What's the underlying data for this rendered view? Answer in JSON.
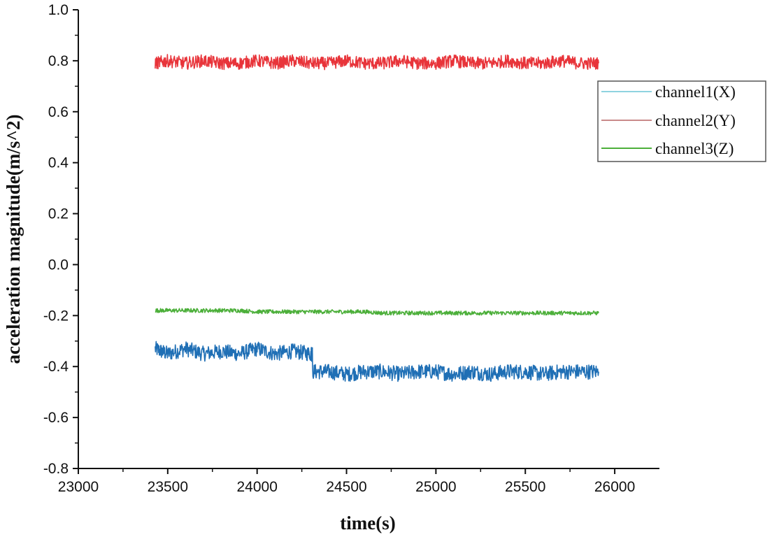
{
  "chart_data": {
    "type": "line",
    "title": "",
    "xlabel": "time(s)",
    "ylabel": "acceleration magnitude(m/s^2)",
    "xlim": [
      23000,
      26250
    ],
    "ylim": [
      -0.8,
      1.0
    ],
    "xticks": [
      23000,
      23500,
      24000,
      24500,
      25000,
      25500,
      26000
    ],
    "xtick_labels": [
      "23000",
      "23500",
      "24000",
      "24500",
      "25000",
      "25500",
      "26000"
    ],
    "yticks": [
      -0.8,
      -0.6,
      -0.4,
      -0.2,
      0.0,
      0.2,
      0.4,
      0.6,
      0.8,
      1.0
    ],
    "ytick_labels": [
      "-0.8",
      "-0.6",
      "-0.4",
      "-0.2",
      "0.0",
      "0.2",
      "0.4",
      "0.6",
      "0.8",
      "1.0"
    ],
    "grid": false,
    "legend_position": "right",
    "series": [
      {
        "name": "channel1(X)",
        "legend_color": "#8fd3e0",
        "color": "#1f6fb5",
        "x": [
          23430,
          23500,
          23600,
          23700,
          23800,
          23900,
          24000,
          24100,
          24200,
          24300,
          24310,
          24400,
          24500,
          24600,
          24700,
          24800,
          24900,
          25000,
          25100,
          25200,
          25300,
          25400,
          25500,
          25600,
          25700,
          25800,
          25910
        ],
        "y": [
          -0.33,
          -0.35,
          -0.33,
          -0.35,
          -0.34,
          -0.35,
          -0.33,
          -0.35,
          -0.34,
          -0.35,
          -0.42,
          -0.42,
          -0.43,
          -0.42,
          -0.42,
          -0.43,
          -0.42,
          -0.42,
          -0.43,
          -0.42,
          -0.43,
          -0.42,
          -0.42,
          -0.43,
          -0.42,
          -0.42,
          -0.42
        ]
      },
      {
        "name": "channel2(Y)",
        "legend_color": "#c98a8a",
        "color": "#e8343a",
        "x": [
          23430,
          23500,
          23600,
          23700,
          23800,
          23900,
          24000,
          24100,
          24200,
          24300,
          24400,
          24500,
          24600,
          24700,
          24800,
          24900,
          25000,
          25100,
          25200,
          25300,
          25400,
          25500,
          25600,
          25700,
          25800,
          25910
        ],
        "y": [
          0.79,
          0.8,
          0.79,
          0.8,
          0.79,
          0.79,
          0.8,
          0.79,
          0.8,
          0.79,
          0.79,
          0.8,
          0.79,
          0.79,
          0.8,
          0.79,
          0.79,
          0.8,
          0.79,
          0.79,
          0.8,
          0.79,
          0.79,
          0.8,
          0.79,
          0.79
        ]
      },
      {
        "name": "channel3(Z)",
        "legend_color": "#4caf3a",
        "color": "#4caf3a",
        "x": [
          23430,
          23500,
          23600,
          23700,
          23800,
          23900,
          24000,
          24100,
          24200,
          24300,
          24400,
          24500,
          24600,
          24700,
          24800,
          24900,
          25000,
          25100,
          25200,
          25300,
          25400,
          25500,
          25600,
          25700,
          25800,
          25910
        ],
        "y": [
          -0.18,
          -0.18,
          -0.18,
          -0.18,
          -0.18,
          -0.18,
          -0.185,
          -0.185,
          -0.185,
          -0.185,
          -0.185,
          -0.185,
          -0.185,
          -0.19,
          -0.19,
          -0.19,
          -0.19,
          -0.19,
          -0.19,
          -0.19,
          -0.19,
          -0.19,
          -0.19,
          -0.19,
          -0.19,
          -0.19
        ]
      }
    ]
  }
}
